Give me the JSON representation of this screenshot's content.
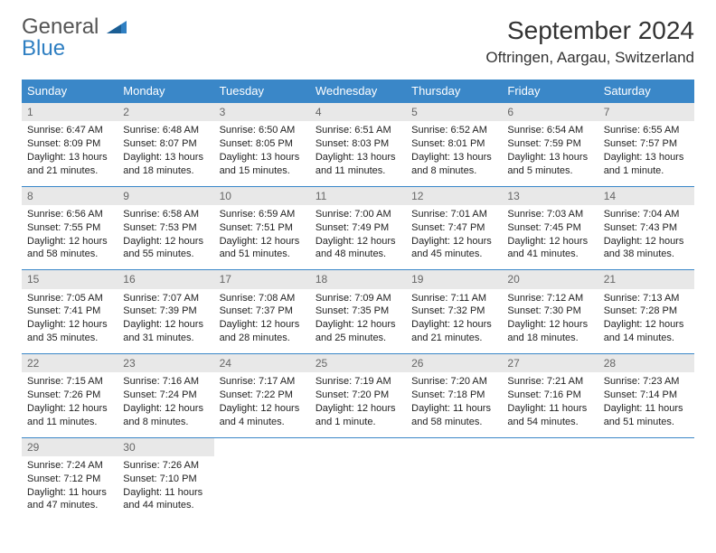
{
  "logo": {
    "line1": "General",
    "line2": "Blue",
    "line1_color": "#555555",
    "line2_color": "#2f7fc2"
  },
  "title": "September 2024",
  "location": "Oftringen, Aargau, Switzerland",
  "header_bg": "#3a87c8",
  "daynum_bg": "#e8e8e8",
  "day_headers": [
    "Sunday",
    "Monday",
    "Tuesday",
    "Wednesday",
    "Thursday",
    "Friday",
    "Saturday"
  ],
  "weeks": [
    [
      {
        "n": "1",
        "sr": "Sunrise: 6:47 AM",
        "ss": "Sunset: 8:09 PM",
        "d1": "Daylight: 13 hours",
        "d2": "and 21 minutes."
      },
      {
        "n": "2",
        "sr": "Sunrise: 6:48 AM",
        "ss": "Sunset: 8:07 PM",
        "d1": "Daylight: 13 hours",
        "d2": "and 18 minutes."
      },
      {
        "n": "3",
        "sr": "Sunrise: 6:50 AM",
        "ss": "Sunset: 8:05 PM",
        "d1": "Daylight: 13 hours",
        "d2": "and 15 minutes."
      },
      {
        "n": "4",
        "sr": "Sunrise: 6:51 AM",
        "ss": "Sunset: 8:03 PM",
        "d1": "Daylight: 13 hours",
        "d2": "and 11 minutes."
      },
      {
        "n": "5",
        "sr": "Sunrise: 6:52 AM",
        "ss": "Sunset: 8:01 PM",
        "d1": "Daylight: 13 hours",
        "d2": "and 8 minutes."
      },
      {
        "n": "6",
        "sr": "Sunrise: 6:54 AM",
        "ss": "Sunset: 7:59 PM",
        "d1": "Daylight: 13 hours",
        "d2": "and 5 minutes."
      },
      {
        "n": "7",
        "sr": "Sunrise: 6:55 AM",
        "ss": "Sunset: 7:57 PM",
        "d1": "Daylight: 13 hours",
        "d2": "and 1 minute."
      }
    ],
    [
      {
        "n": "8",
        "sr": "Sunrise: 6:56 AM",
        "ss": "Sunset: 7:55 PM",
        "d1": "Daylight: 12 hours",
        "d2": "and 58 minutes."
      },
      {
        "n": "9",
        "sr": "Sunrise: 6:58 AM",
        "ss": "Sunset: 7:53 PM",
        "d1": "Daylight: 12 hours",
        "d2": "and 55 minutes."
      },
      {
        "n": "10",
        "sr": "Sunrise: 6:59 AM",
        "ss": "Sunset: 7:51 PM",
        "d1": "Daylight: 12 hours",
        "d2": "and 51 minutes."
      },
      {
        "n": "11",
        "sr": "Sunrise: 7:00 AM",
        "ss": "Sunset: 7:49 PM",
        "d1": "Daylight: 12 hours",
        "d2": "and 48 minutes."
      },
      {
        "n": "12",
        "sr": "Sunrise: 7:01 AM",
        "ss": "Sunset: 7:47 PM",
        "d1": "Daylight: 12 hours",
        "d2": "and 45 minutes."
      },
      {
        "n": "13",
        "sr": "Sunrise: 7:03 AM",
        "ss": "Sunset: 7:45 PM",
        "d1": "Daylight: 12 hours",
        "d2": "and 41 minutes."
      },
      {
        "n": "14",
        "sr": "Sunrise: 7:04 AM",
        "ss": "Sunset: 7:43 PM",
        "d1": "Daylight: 12 hours",
        "d2": "and 38 minutes."
      }
    ],
    [
      {
        "n": "15",
        "sr": "Sunrise: 7:05 AM",
        "ss": "Sunset: 7:41 PM",
        "d1": "Daylight: 12 hours",
        "d2": "and 35 minutes."
      },
      {
        "n": "16",
        "sr": "Sunrise: 7:07 AM",
        "ss": "Sunset: 7:39 PM",
        "d1": "Daylight: 12 hours",
        "d2": "and 31 minutes."
      },
      {
        "n": "17",
        "sr": "Sunrise: 7:08 AM",
        "ss": "Sunset: 7:37 PM",
        "d1": "Daylight: 12 hours",
        "d2": "and 28 minutes."
      },
      {
        "n": "18",
        "sr": "Sunrise: 7:09 AM",
        "ss": "Sunset: 7:35 PM",
        "d1": "Daylight: 12 hours",
        "d2": "and 25 minutes."
      },
      {
        "n": "19",
        "sr": "Sunrise: 7:11 AM",
        "ss": "Sunset: 7:32 PM",
        "d1": "Daylight: 12 hours",
        "d2": "and 21 minutes."
      },
      {
        "n": "20",
        "sr": "Sunrise: 7:12 AM",
        "ss": "Sunset: 7:30 PM",
        "d1": "Daylight: 12 hours",
        "d2": "and 18 minutes."
      },
      {
        "n": "21",
        "sr": "Sunrise: 7:13 AM",
        "ss": "Sunset: 7:28 PM",
        "d1": "Daylight: 12 hours",
        "d2": "and 14 minutes."
      }
    ],
    [
      {
        "n": "22",
        "sr": "Sunrise: 7:15 AM",
        "ss": "Sunset: 7:26 PM",
        "d1": "Daylight: 12 hours",
        "d2": "and 11 minutes."
      },
      {
        "n": "23",
        "sr": "Sunrise: 7:16 AM",
        "ss": "Sunset: 7:24 PM",
        "d1": "Daylight: 12 hours",
        "d2": "and 8 minutes."
      },
      {
        "n": "24",
        "sr": "Sunrise: 7:17 AM",
        "ss": "Sunset: 7:22 PM",
        "d1": "Daylight: 12 hours",
        "d2": "and 4 minutes."
      },
      {
        "n": "25",
        "sr": "Sunrise: 7:19 AM",
        "ss": "Sunset: 7:20 PM",
        "d1": "Daylight: 12 hours",
        "d2": "and 1 minute."
      },
      {
        "n": "26",
        "sr": "Sunrise: 7:20 AM",
        "ss": "Sunset: 7:18 PM",
        "d1": "Daylight: 11 hours",
        "d2": "and 58 minutes."
      },
      {
        "n": "27",
        "sr": "Sunrise: 7:21 AM",
        "ss": "Sunset: 7:16 PM",
        "d1": "Daylight: 11 hours",
        "d2": "and 54 minutes."
      },
      {
        "n": "28",
        "sr": "Sunrise: 7:23 AM",
        "ss": "Sunset: 7:14 PM",
        "d1": "Daylight: 11 hours",
        "d2": "and 51 minutes."
      }
    ],
    [
      {
        "n": "29",
        "sr": "Sunrise: 7:24 AM",
        "ss": "Sunset: 7:12 PM",
        "d1": "Daylight: 11 hours",
        "d2": "and 47 minutes."
      },
      {
        "n": "30",
        "sr": "Sunrise: 7:26 AM",
        "ss": "Sunset: 7:10 PM",
        "d1": "Daylight: 11 hours",
        "d2": "and 44 minutes."
      },
      null,
      null,
      null,
      null,
      null
    ]
  ]
}
